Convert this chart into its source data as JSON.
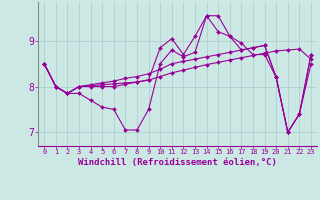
{
  "xlabel": "Windchill (Refroidissement éolien,°C)",
  "bg_color": "#cce8e4",
  "line_color": "#990099",
  "grid_color": "#aacccc",
  "yticks": [
    7,
    8,
    9
  ],
  "xticks": [
    0,
    1,
    2,
    3,
    4,
    5,
    6,
    7,
    8,
    9,
    10,
    11,
    12,
    13,
    14,
    15,
    16,
    17,
    18,
    19,
    20,
    21,
    22,
    23
  ],
  "xlim": [
    -0.5,
    23.5
  ],
  "ylim": [
    6.7,
    9.85
  ],
  "series": [
    [
      8.5,
      8.0,
      7.85,
      7.85,
      7.7,
      7.55,
      7.5,
      7.05,
      7.05,
      7.5,
      8.5,
      8.8,
      8.65,
      8.75,
      9.55,
      9.55,
      9.1,
      8.8,
      8.85,
      8.9,
      8.2,
      7.0,
      7.4,
      8.7
    ],
    [
      8.5,
      8.0,
      7.85,
      8.0,
      8.02,
      8.04,
      8.06,
      8.08,
      8.1,
      8.14,
      8.22,
      8.3,
      8.36,
      8.42,
      8.48,
      8.53,
      8.58,
      8.63,
      8.68,
      8.73,
      8.78,
      8.8,
      8.82,
      8.6
    ],
    [
      8.5,
      8.0,
      7.85,
      8.0,
      8.0,
      8.0,
      8.0,
      8.05,
      8.1,
      8.15,
      8.85,
      9.05,
      8.7,
      9.1,
      9.55,
      9.2,
      9.1,
      8.95,
      8.7,
      8.7,
      8.2,
      7.0,
      7.4,
      8.5
    ],
    [
      8.5,
      8.0,
      7.85,
      8.0,
      8.04,
      8.08,
      8.12,
      8.18,
      8.22,
      8.28,
      8.38,
      8.5,
      8.55,
      8.6,
      8.65,
      8.7,
      8.75,
      8.8,
      8.85,
      8.9,
      8.2,
      7.0,
      7.4,
      8.7
    ]
  ]
}
